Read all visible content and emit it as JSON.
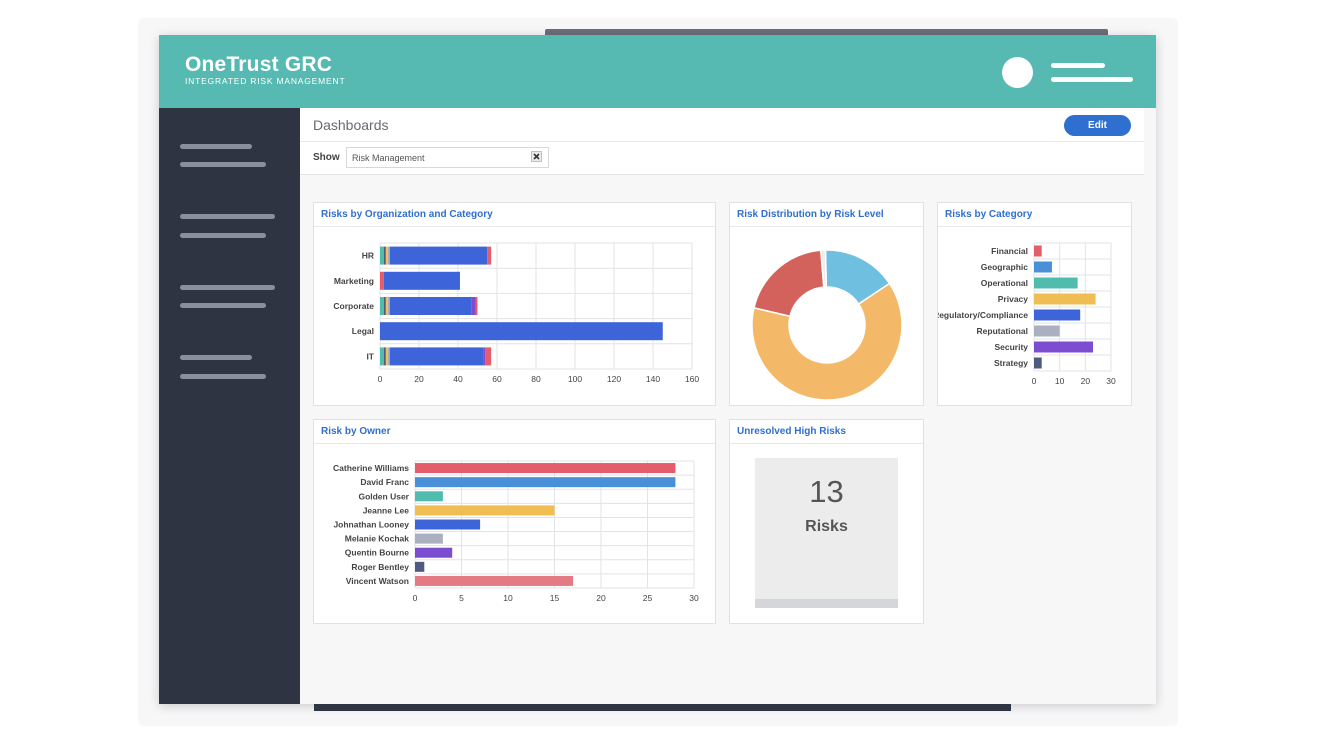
{
  "app": {
    "title": "OneTrust GRC",
    "subtitle": "INTEGRATED RISK MANAGEMENT"
  },
  "toolbar": {
    "title": "Dashboards",
    "edit_label": "Edit",
    "show_label": "Show",
    "filter_value": "Risk Management"
  },
  "widgets": {
    "org_category": {
      "title": "Risks by Organization and Category"
    },
    "risk_level": {
      "title": "Risk Distribution by Risk Level"
    },
    "by_category": {
      "title": "Risks by Category"
    },
    "by_owner": {
      "title": "Risk by Owner"
    },
    "unresolved": {
      "title": "Unresolved High Risks",
      "count": "13",
      "label": "Risks"
    }
  },
  "colors": {
    "header": "#56b9b2",
    "sidebar": "#2e3441",
    "accent": "#2f6fcf",
    "red": "#e55c6b",
    "blue": "#3d64d8",
    "teal": "#4fbcae",
    "yellow": "#f0bd53",
    "gray": "#aab0bf",
    "purple": "#7c4dd1",
    "navy": "#4e5b7e"
  },
  "chart_data": [
    {
      "type": "bar",
      "orientation": "horizontal",
      "stacked": true,
      "title": "Risks by Organization and Category",
      "categories": [
        "HR",
        "Marketing",
        "Corporate",
        "Legal",
        "IT"
      ],
      "xlim": [
        0,
        160
      ],
      "xticks": [
        "0",
        "20",
        "40",
        "60",
        "80",
        "100",
        "120",
        "140",
        "160"
      ],
      "series": [
        {
          "color": "#e55c6b",
          "values": [
            0,
            2,
            0,
            0,
            0
          ]
        },
        {
          "color": "#4fbcae",
          "values": [
            2,
            0,
            2,
            0,
            2
          ]
        },
        {
          "color": "#4e5b7e",
          "values": [
            1,
            0,
            1,
            0,
            1
          ]
        },
        {
          "color": "#f0bd53",
          "values": [
            1,
            0,
            1,
            0,
            1
          ]
        },
        {
          "color": "#aab0bf",
          "values": [
            1,
            0,
            1,
            0,
            1
          ]
        },
        {
          "color": "#3d64d8",
          "values": [
            50,
            39,
            42,
            145,
            48
          ]
        },
        {
          "color": "#7c4dd1",
          "values": [
            0,
            0,
            2,
            0,
            1
          ]
        },
        {
          "color": "#e55c6b",
          "values": [
            2,
            0,
            1,
            0,
            3
          ]
        }
      ],
      "grid": true
    },
    {
      "type": "pie",
      "donut": true,
      "title": "Risk Distribution by Risk Level",
      "slices": [
        {
          "color": "#6fbfe0",
          "value": 16
        },
        {
          "color": "#f3b968",
          "value": 63
        },
        {
          "color": "#d4625c",
          "value": 20
        },
        {
          "color": "#f0ede8",
          "value": 1
        }
      ]
    },
    {
      "type": "bar",
      "orientation": "horizontal",
      "title": "Risks by Category",
      "categories": [
        "Financial",
        "Geographic",
        "Operational",
        "Privacy",
        "Regulatory/Compliance",
        "Reputational",
        "Security",
        "Strategy"
      ],
      "values": [
        3,
        7,
        17,
        24,
        18,
        10,
        23,
        3
      ],
      "colors": [
        "#e55c6b",
        "#4a90d9",
        "#4fbcae",
        "#f0bd53",
        "#3d64d8",
        "#aab0bf",
        "#7c4dd1",
        "#4e5b7e"
      ],
      "xlim": [
        0,
        30
      ],
      "xticks": [
        "0",
        "10",
        "20",
        "30"
      ],
      "grid": true
    },
    {
      "type": "bar",
      "orientation": "horizontal",
      "title": "Risk by Owner",
      "categories": [
        "Catherine Williams",
        "David Franc",
        "Golden User",
        "Jeanne Lee",
        "Johnathan Looney",
        "Melanie Kochak",
        "Quentin Bourne",
        "Roger Bentley",
        "Vincent Watson"
      ],
      "values": [
        28,
        28,
        3,
        15,
        7,
        3,
        4,
        1,
        17
      ],
      "colors": [
        "#e55c6b",
        "#4a90d9",
        "#4fbcae",
        "#f0bd53",
        "#3d64d8",
        "#aab0bf",
        "#7c4dd1",
        "#4e5b7e",
        "#e37a84"
      ],
      "xlim": [
        0,
        30
      ],
      "xticks": [
        "0",
        "5",
        "10",
        "15",
        "20",
        "25",
        "30"
      ],
      "grid": true
    }
  ]
}
